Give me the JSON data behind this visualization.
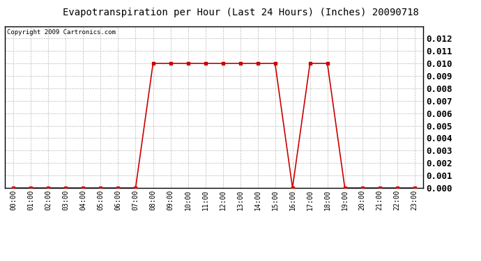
{
  "title": "Evapotranspiration per Hour (Last 24 Hours) (Inches) 20090718",
  "copyright_text": "Copyright 2009 Cartronics.com",
  "hours": [
    "00:00",
    "01:00",
    "02:00",
    "03:00",
    "04:00",
    "05:00",
    "06:00",
    "07:00",
    "08:00",
    "09:00",
    "10:00",
    "11:00",
    "12:00",
    "13:00",
    "14:00",
    "15:00",
    "16:00",
    "17:00",
    "18:00",
    "19:00",
    "20:00",
    "21:00",
    "22:00",
    "23:00"
  ],
  "values": [
    0.0,
    0.0,
    0.0,
    0.0,
    0.0,
    0.0,
    0.0,
    0.0,
    0.01,
    0.01,
    0.01,
    0.01,
    0.01,
    0.01,
    0.01,
    0.01,
    0.0,
    0.01,
    0.01,
    0.0,
    0.0,
    0.0,
    0.0,
    0.0
  ],
  "line_color": "#cc0000",
  "marker": "s",
  "marker_size": 3,
  "background_color": "#ffffff",
  "plot_bg_color": "#ffffff",
  "grid_color": "#bbbbbb",
  "ylim": [
    0,
    0.013
  ],
  "yticks": [
    0.0,
    0.001,
    0.002,
    0.003,
    0.004,
    0.005,
    0.006,
    0.007,
    0.008,
    0.009,
    0.01,
    0.011,
    0.012
  ],
  "title_fontsize": 10,
  "copyright_fontsize": 6.5,
  "tick_fontsize": 7,
  "ytick_fontsize": 9,
  "line_width": 1.2
}
